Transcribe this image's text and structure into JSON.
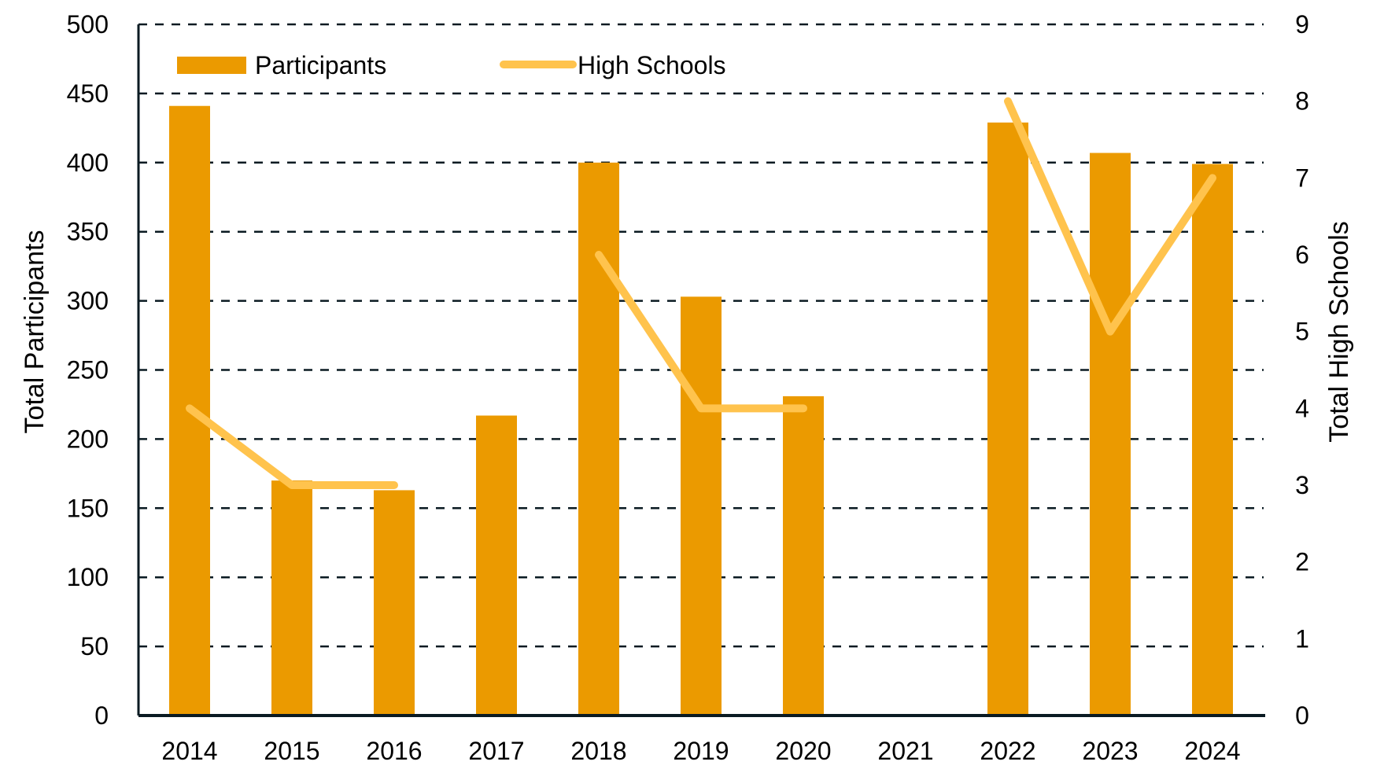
{
  "chart_data": {
    "type": "bar+line",
    "title": "",
    "categories": [
      "2014",
      "2015",
      "2016",
      "2017",
      "2018",
      "2019",
      "2020",
      "2021",
      "2022",
      "2023",
      "2024"
    ],
    "series": [
      {
        "name": "Participants",
        "type": "bar",
        "axis": "left",
        "color": "#EB9A00",
        "values": [
          441,
          170,
          163,
          217,
          400,
          303,
          231,
          null,
          429,
          407,
          399
        ]
      },
      {
        "name": "High Schools",
        "type": "line",
        "axis": "right",
        "color": "#FFC34D",
        "values": [
          4,
          3,
          3,
          null,
          6,
          4,
          4,
          null,
          8,
          5,
          7
        ]
      }
    ],
    "ylabel": "Total Participants",
    "ylabel_right": "Total High Schools",
    "xlabel": "",
    "ylim": [
      0,
      500
    ],
    "ylim_right": [
      0,
      9
    ],
    "yticks": [
      "0",
      "50",
      "100",
      "150",
      "200",
      "250",
      "300",
      "350",
      "400",
      "450",
      "500"
    ],
    "yticks_right": [
      "0",
      "1",
      "2",
      "3",
      "4",
      "5",
      "6",
      "7",
      "8",
      "9"
    ],
    "grid": "horizontal-dashed",
    "legend_position": "top-left",
    "grid_color": "#0A1A22"
  }
}
